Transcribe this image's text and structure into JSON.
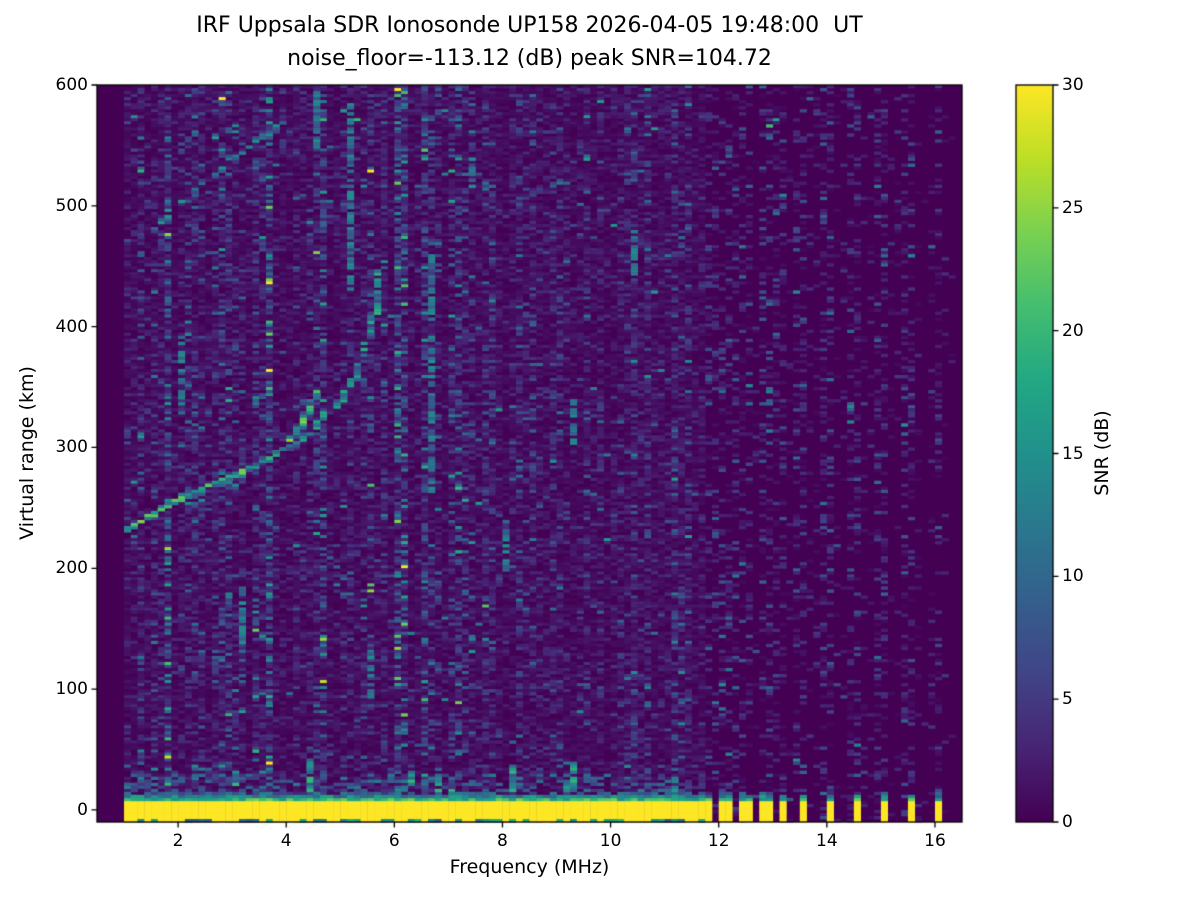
{
  "figure": {
    "title_line1": "IRF Uppsala SDR Ionosonde UP158 2026-04-05 19:48:00  UT",
    "title_line2": "noise_floor=-113.12 (dB) peak SNR=104.72",
    "station": "UP158",
    "timestamp_ut": "2026-04-05 19:48:00",
    "noise_floor_db": -113.12,
    "peak_snr_db": 104.72
  },
  "chart_data": {
    "type": "heatmap",
    "title": "IRF Uppsala SDR Ionosonde UP158 2026-04-05 19:48:00  UT\nnoise_floor=-113.12 (dB) peak SNR=104.72",
    "xlabel": "Frequency (MHz)",
    "ylabel": "Virtual range (km)",
    "xlim": [
      0.5,
      16.5
    ],
    "ylim": [
      -10,
      600
    ],
    "xticks": [
      2,
      4,
      6,
      8,
      10,
      12,
      14,
      16
    ],
    "yticks": [
      0,
      100,
      200,
      300,
      400,
      500,
      600
    ],
    "grid": false,
    "colorbar": {
      "label": "SNR (dB)",
      "vmin": 0,
      "vmax": 30,
      "ticks": [
        0,
        5,
        10,
        15,
        20,
        25,
        30
      ],
      "colormap": "viridis",
      "position": "right"
    },
    "colormap_stops": [
      "#440154",
      "#482475",
      "#414487",
      "#355f8d",
      "#2a788e",
      "#21918c",
      "#22a884",
      "#44be70",
      "#7ad151",
      "#bddf26",
      "#fde725"
    ],
    "cell_size": {
      "freq_mhz": 0.125,
      "range_km": 2.5
    },
    "sounding": {
      "swept_freq_range_mhz": [
        1.0,
        16.2
      ],
      "background_noise": {
        "freq_range_mhz": [
          1.0,
          11.7
        ],
        "mean_snr_db": 1.2
      },
      "ground_band": {
        "freq_range_mhz": [
          1.0,
          11.7
        ],
        "range_km": [
          -8,
          8
        ],
        "snr_db": 30
      },
      "station_bars_mhz": [
        11.85,
        12.02,
        12.2,
        12.4,
        12.59,
        12.78,
        12.96,
        13.15,
        13.5,
        14.0,
        14.5,
        15.0,
        15.5,
        16.05
      ],
      "station_bars_range_km": [
        -9,
        7
      ],
      "echo_traces": [
        {
          "name": "F-region first hop O-mode",
          "peak_snr_db": 24,
          "points_mhz_km": [
            [
              1.05,
              231
            ],
            [
              1.3,
              238
            ],
            [
              1.6,
              246
            ],
            [
              1.9,
              254
            ],
            [
              2.2,
              261
            ],
            [
              2.5,
              267
            ],
            [
              2.8,
              272
            ],
            [
              3.1,
              278
            ],
            [
              3.4,
              285
            ],
            [
              3.7,
              293
            ],
            [
              3.95,
              302
            ],
            [
              4.15,
              312
            ],
            [
              4.3,
              322
            ],
            [
              4.45,
              335
            ],
            [
              4.55,
              348
            ]
          ]
        },
        {
          "name": "F-region first hop X-mode",
          "peak_snr_db": 19,
          "points_mhz_km": [
            [
              3.6,
              288
            ],
            [
              3.9,
              296
            ],
            [
              4.2,
              305
            ],
            [
              4.5,
              316
            ],
            [
              4.8,
              328
            ],
            [
              5.05,
              342
            ],
            [
              5.25,
              358
            ],
            [
              5.42,
              376
            ],
            [
              5.55,
              395
            ],
            [
              5.63,
              412
            ],
            [
              5.69,
              430
            ],
            [
              5.73,
              448
            ]
          ]
        },
        {
          "name": "F-region second hop",
          "peak_snr_db": 15,
          "points_mhz_km": [
            [
              1.5,
              478
            ],
            [
              1.75,
              490
            ],
            [
              2.0,
              501
            ],
            [
              2.25,
              511
            ],
            [
              2.5,
              521
            ],
            [
              2.75,
              530
            ],
            [
              3.0,
              539
            ],
            [
              3.2,
              546
            ],
            [
              3.45,
              554
            ],
            [
              3.7,
              562
            ],
            [
              3.95,
              570
            ]
          ]
        }
      ],
      "rfi_stripes_mhz_strength": [
        [
          1.25,
          1.8
        ],
        [
          1.7,
          2.3
        ],
        [
          2.05,
          2.1
        ],
        [
          2.45,
          1.8
        ],
        [
          2.75,
          2.4
        ],
        [
          3.1,
          2.0
        ],
        [
          3.5,
          1.8
        ],
        [
          4.3,
          1.7
        ],
        [
          5.15,
          2.3
        ],
        [
          5.5,
          1.8
        ],
        [
          6.05,
          1.7
        ],
        [
          6.7,
          2.4
        ],
        [
          7.3,
          1.8
        ],
        [
          7.75,
          1.7
        ],
        [
          8.5,
          2.0
        ],
        [
          9.1,
          1.8
        ],
        [
          9.6,
          1.7
        ],
        [
          10.15,
          1.9
        ],
        [
          10.7,
          1.7
        ],
        [
          11.2,
          1.8
        ]
      ],
      "bright_streaks_mhz_km": [
        [
          2.05,
          330,
          395
        ],
        [
          3.15,
          140,
          190
        ],
        [
          4.55,
          550,
          600
        ],
        [
          5.15,
          430,
          585
        ],
        [
          5.5,
          95,
          130
        ],
        [
          6.7,
          265,
          460
        ],
        [
          7.45,
          505,
          545
        ],
        [
          8.1,
          200,
          240
        ],
        [
          9.3,
          305,
          345
        ],
        [
          10.4,
          440,
          480
        ]
      ]
    }
  }
}
